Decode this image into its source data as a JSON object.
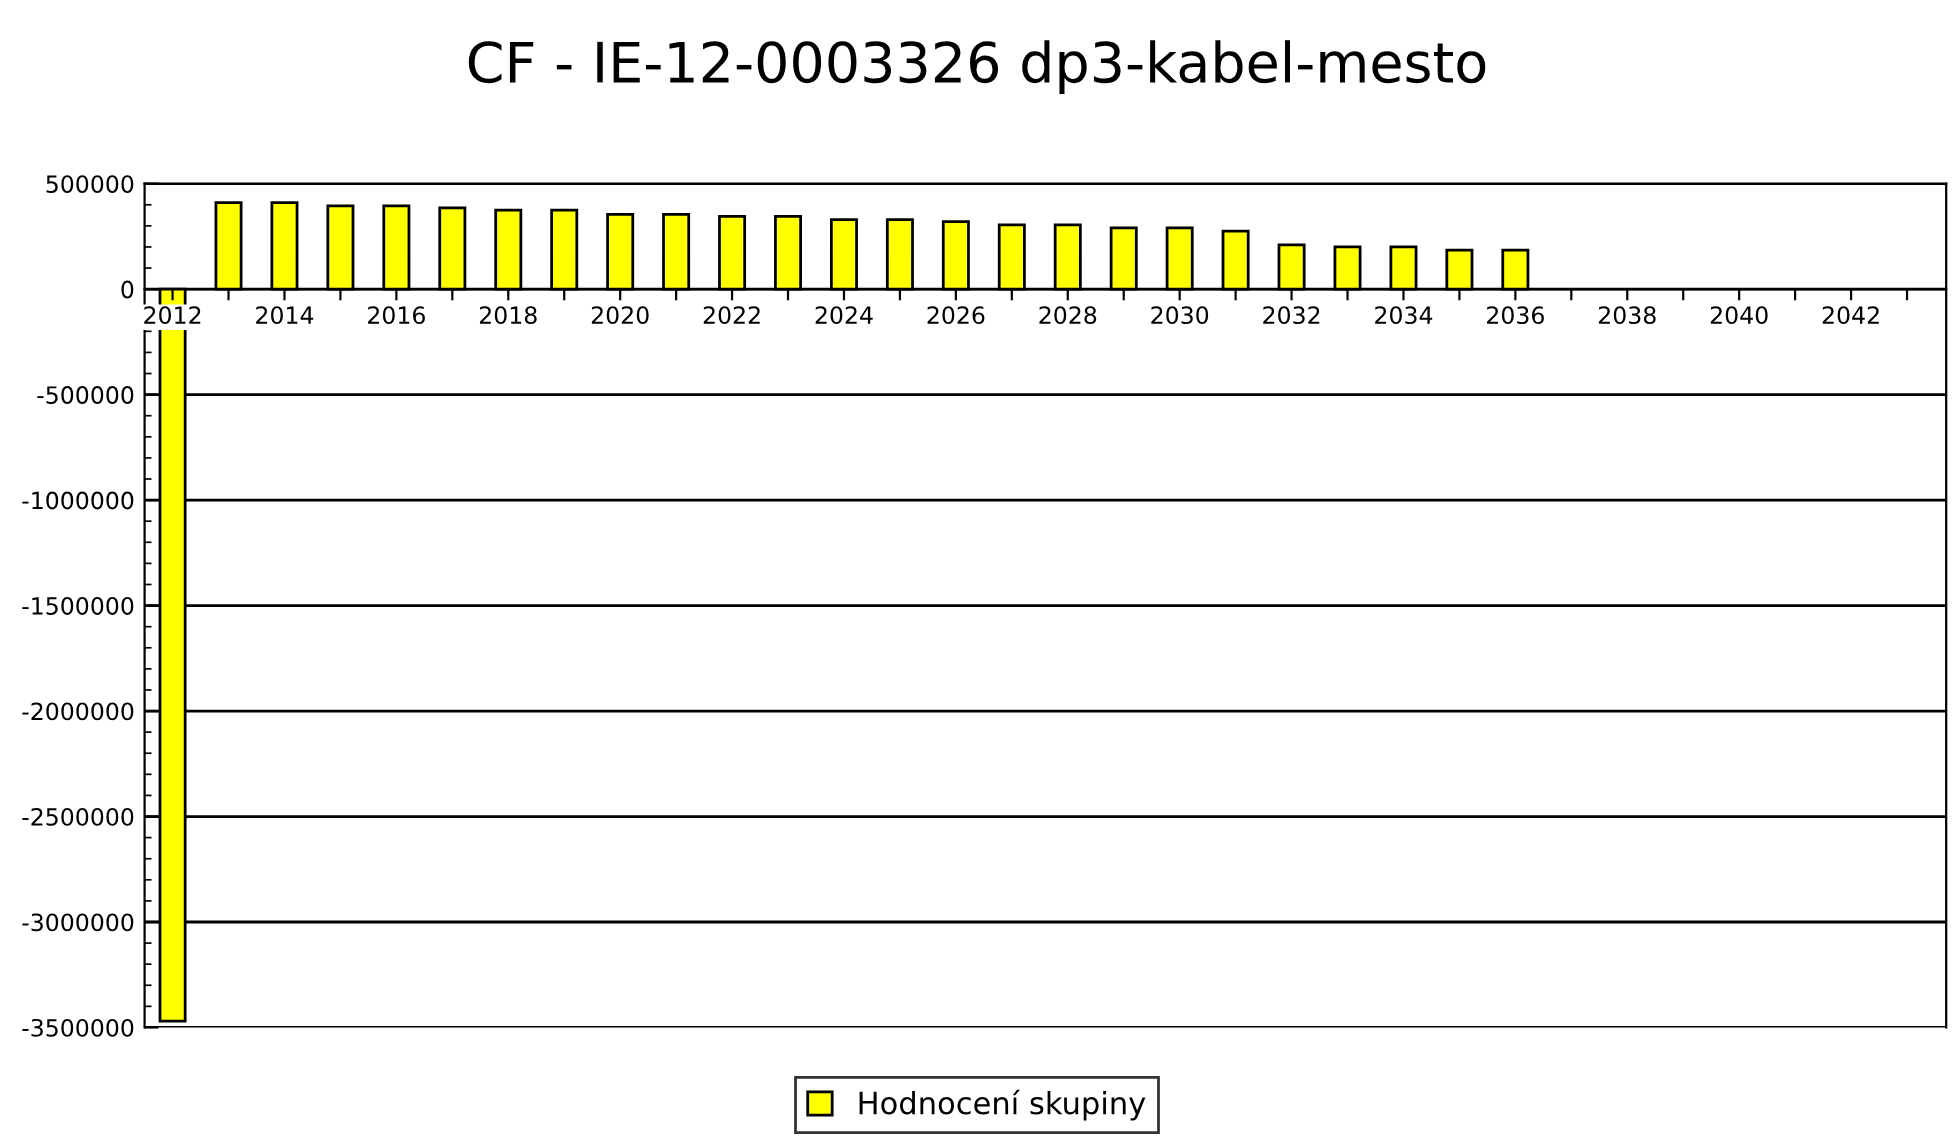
{
  "chart_data": {
    "type": "bar",
    "title": "CF - IE-12-0003326 dp3-kabel-mesto",
    "x": [
      2012,
      2013,
      2014,
      2015,
      2016,
      2017,
      2018,
      2019,
      2020,
      2021,
      2022,
      2023,
      2024,
      2025,
      2026,
      2027,
      2028,
      2029,
      2030,
      2031,
      2032,
      2033,
      2034,
      2035,
      2036
    ],
    "series": [
      {
        "name": "Hodnocení skupiny",
        "color": "#ffff00",
        "values": [
          -3470000,
          410000,
          410000,
          395000,
          395000,
          385000,
          375000,
          375000,
          355000,
          355000,
          345000,
          345000,
          330000,
          330000,
          320000,
          305000,
          305000,
          290000,
          290000,
          275000,
          210000,
          200000,
          200000,
          185000,
          185000
        ]
      }
    ],
    "xlim": [
      2011.5,
      2043.7
    ],
    "xticks": [
      2012,
      {
        "value": 2013,
        "label": null
      },
      2014,
      {
        "value": 2015,
        "label": null
      },
      2016,
      {
        "value": 2017,
        "label": null
      },
      2018,
      {
        "value": 2019,
        "label": null
      },
      2020,
      {
        "value": 2021,
        "label": null
      },
      2022,
      {
        "value": 2023,
        "label": null
      },
      2024,
      {
        "value": 2025,
        "label": null
      },
      2026,
      {
        "value": 2027,
        "label": null
      },
      2028,
      {
        "value": 2029,
        "label": null
      },
      2030,
      {
        "value": 2031,
        "label": null
      },
      2032,
      {
        "value": 2033,
        "label": null
      },
      2034,
      {
        "value": 2035,
        "label": null
      },
      2036,
      {
        "value": 2037,
        "label": null
      },
      2038,
      {
        "value": 2039,
        "label": null
      },
      2040,
      {
        "value": 2041,
        "label": null
      },
      2042,
      {
        "value": 2043,
        "label": null
      }
    ],
    "ylim": [
      -3500000,
      500000
    ],
    "yticks": [
      -3500000,
      -3000000,
      -2500000,
      -2000000,
      -1500000,
      -1000000,
      -500000,
      0,
      500000
    ],
    "grid": "y",
    "legend": "bottom"
  }
}
